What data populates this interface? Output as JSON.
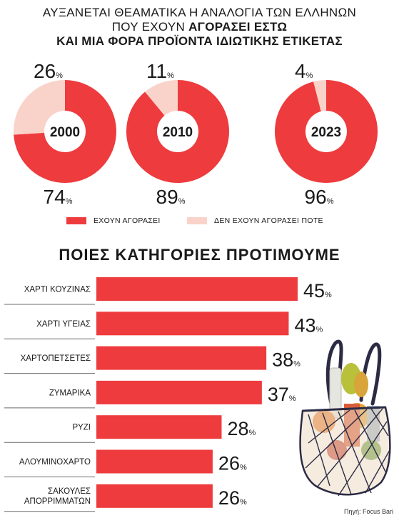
{
  "title": {
    "line1": "ΑΥΞΑΝΕΤΑΙ ΘΕΑΜΑΤΙΚΑ Η ΑΝΑΛΟΓΙΑ ΤΩΝ ΕΛΛΗΝΩΝ",
    "line2_prefix": "ΠΟΥ ΕΧΟΥΝ ",
    "line2_bold": "ΑΓΟΡΑΣΕΙ ΕΣΤΩ",
    "line3": "ΚΑΙ ΜΙΑ ΦΟΡΑ ΠΡΟΪΟΝΤΑ ΙΔΙΩΤΙΚΗΣ ΕΤΙΚΕΤΑΣ"
  },
  "colors": {
    "accent_red": "#ee3b3d",
    "light_pink": "#f9d3c9",
    "text": "#1a1a1a"
  },
  "legend": {
    "bought": "ΕΧΟΥΝ ΑΓΟΡΑΣΕΙ",
    "never": "ΔΕΝ ΕΧΟΥΝ ΑΓΟΡΑΣΕΙ ΠΟΤΕ"
  },
  "section_title": "ΠΟΙΕΣ ΚΑΤΗΓΟΡΙΕΣ ΠΡΟΤΙΜΟΥΜΕ",
  "source": "Πηγή: Focus Bari",
  "chart_data": [
    {
      "type": "pie",
      "title": "",
      "categories": [
        "2000",
        "2010",
        "2023"
      ],
      "series": [
        {
          "name": "ΕΧΟΥΝ ΑΓΟΡΑΣΕΙ",
          "values": [
            74,
            89,
            96
          ]
        },
        {
          "name": "ΔΕΝ ΕΧΟΥΝ ΑΓΟΡΑΣΕΙ ΠΟΤΕ",
          "values": [
            26,
            11,
            4
          ]
        }
      ],
      "unit": "%"
    },
    {
      "type": "bar",
      "title": "ΠΟΙΕΣ ΚΑΤΗΓΟΡΙΕΣ ΠΡΟΤΙΜΟΥΜΕ",
      "categories": [
        "ΧΑΡΤΙ ΚΟΥΖΙΝΑΣ",
        "ΧΑΡΤΙ ΥΓΕΙΑΣ",
        "ΧΑΡΤΟΠΕΤΣΕΤΕΣ",
        "ΖΥΜΑΡΙΚΑ",
        "ΡΥΖΙ",
        "ΑΛΟΥΜΙΝΟΧΑΡΤΟ",
        "ΣΑΚΟΥΛΕΣ ΑΠΟΡΡΙΜΜΑΤΩΝ"
      ],
      "values": [
        45,
        43,
        38,
        37,
        28,
        26,
        26
      ],
      "unit": "%",
      "xlim": [
        0,
        45
      ]
    }
  ]
}
